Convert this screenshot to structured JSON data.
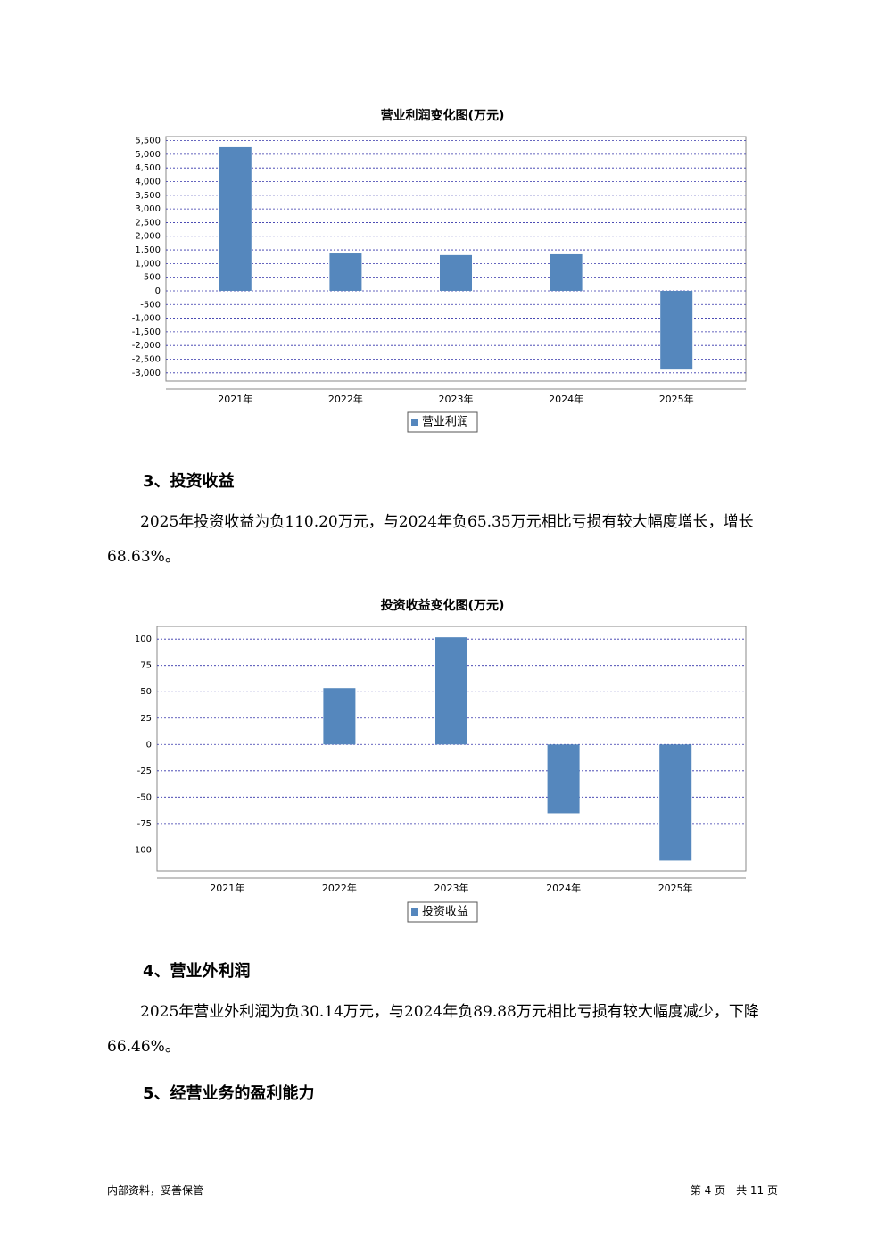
{
  "chart_data": [
    {
      "type": "bar",
      "title": "营业利润变化图(万元)",
      "categories": [
        "2021年",
        "2022年",
        "2023年",
        "2024年",
        "2025年"
      ],
      "series": [
        {
          "name": "营业利润",
          "color": "#5587bd",
          "values": [
            5260,
            1370,
            1310,
            1340,
            -2880
          ]
        }
      ],
      "ylim": [
        -3300,
        5650
      ],
      "yticks": [
        {
          "value": 5500,
          "label": "5,500"
        },
        {
          "value": 5000,
          "label": "5,000"
        },
        {
          "value": 4500,
          "label": "4,500"
        },
        {
          "value": 4000,
          "label": "4,000"
        },
        {
          "value": 3500,
          "label": "3,500"
        },
        {
          "value": 3000,
          "label": "3,000"
        },
        {
          "value": 2500,
          "label": "2,500"
        },
        {
          "value": 2000,
          "label": "2,000"
        },
        {
          "value": 1500,
          "label": "1,500"
        },
        {
          "value": 1000,
          "label": "1,000"
        },
        500,
        0,
        -500,
        {
          "value": -1000,
          "label": "-1,000"
        },
        {
          "value": -1500,
          "label": "-1,500"
        },
        {
          "value": -2000,
          "label": "-2,000"
        },
        {
          "value": -2500,
          "label": "-2,500"
        },
        {
          "value": -3000,
          "label": "-3,000"
        }
      ],
      "grid": true
    },
    {
      "type": "bar",
      "title": "投资收益变化图(万元)",
      "categories": [
        "2021年",
        "2022年",
        "2023年",
        "2024年",
        "2025年"
      ],
      "series": [
        {
          "name": "投资收益",
          "color": "#5587bd",
          "values": [
            0,
            53.4,
            101.7,
            -65.35,
            -110.2
          ]
        }
      ],
      "ylim": [
        -120,
        112
      ],
      "yticks": [
        100,
        75,
        50,
        25,
        0,
        -25,
        -50,
        -75,
        -100
      ],
      "grid": true
    }
  ],
  "sections": [
    {
      "heading": "3、投资收益",
      "paragraph": "2025年投资收益为负110.20万元，与2024年负65.35万元相比亏损有较大幅度增长，增长68.63%。"
    },
    {
      "heading": "4、营业外利润",
      "paragraph": "2025年营业外利润为负30.14万元，与2024年负89.88万元相比亏损有较大幅度减少，下降66.46%。"
    },
    {
      "heading": "5、经营业务的盈利能力"
    }
  ],
  "footer": {
    "left": "内部资料，妥善保管",
    "right": "第 4 页　共 11 页"
  }
}
